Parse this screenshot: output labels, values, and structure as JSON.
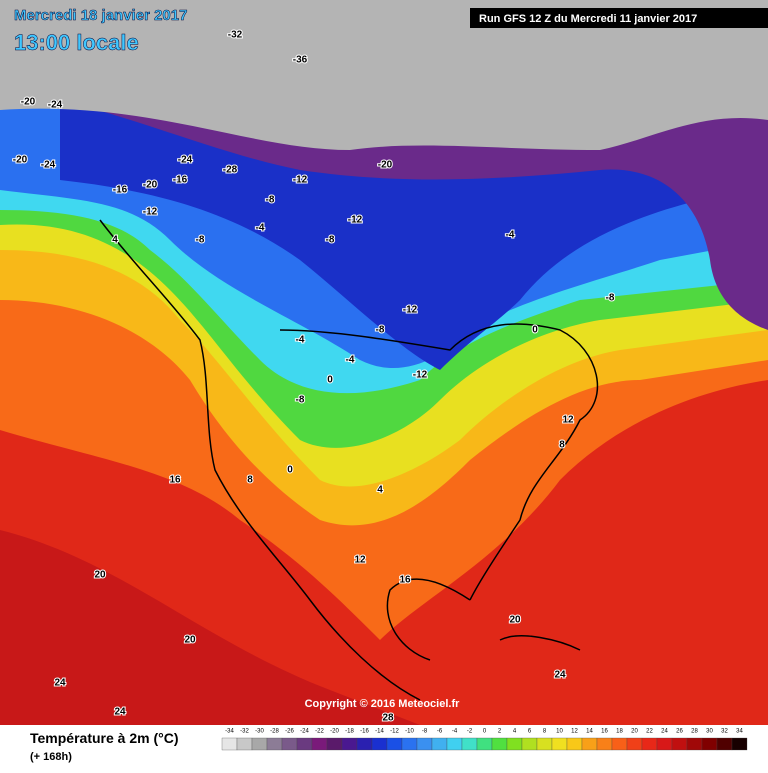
{
  "header": {
    "date": "Mercredi 18 janvier 2017",
    "time": "13:00 locale",
    "run": "Run GFS 12 Z du Mercredi 11 janvier 2017",
    "copyright": "Copyright © 2016 Meteociel.fr"
  },
  "legend": {
    "title": "Température à 2m (°C)",
    "subtitle": "(+ 168h)",
    "values": [
      -34,
      -32,
      -30,
      -28,
      -26,
      -24,
      -22,
      -20,
      -18,
      -16,
      -14,
      -12,
      -10,
      -8,
      -6,
      -4,
      -2,
      0,
      2,
      4,
      6,
      8,
      10,
      12,
      14,
      16,
      18,
      20,
      22,
      24,
      26,
      28,
      30,
      32,
      34
    ],
    "colors": [
      "#e6e6e6",
      "#c8c8c8",
      "#a8a8a8",
      "#8c7c96",
      "#7a5a8a",
      "#6a3a80",
      "#7a1a7a",
      "#5a1a6a",
      "#4a1890",
      "#2a20b0",
      "#1a30d0",
      "#1a50e6",
      "#2a72f0",
      "#3a90f0",
      "#40b0f0",
      "#40d0f0",
      "#40e0c8",
      "#40e080",
      "#50e040",
      "#80e020",
      "#b0e020",
      "#d8e020",
      "#f0e020",
      "#f8c818",
      "#f8a018",
      "#f88018",
      "#f86018",
      "#f04018",
      "#e82818",
      "#d81818",
      "#c01010",
      "#a00808",
      "#800000",
      "#500000",
      "#180000"
    ]
  },
  "map_labels": [
    "-20",
    "-24",
    "-32",
    "-36",
    "-28",
    "-24",
    "-20",
    "-16",
    "-12",
    "-8",
    "-12",
    "-4",
    "-8",
    "-12",
    "-12",
    "-8",
    "-4",
    "0",
    "-4",
    "-8",
    "-12",
    "-20",
    "-24",
    "-20",
    "-16",
    "-8",
    "4",
    "0",
    "4",
    "8",
    "12",
    "16",
    "16",
    "20",
    "20",
    "24",
    "24",
    "28",
    "20",
    "24",
    "-8",
    "-4",
    "0",
    "12",
    "8"
  ]
}
